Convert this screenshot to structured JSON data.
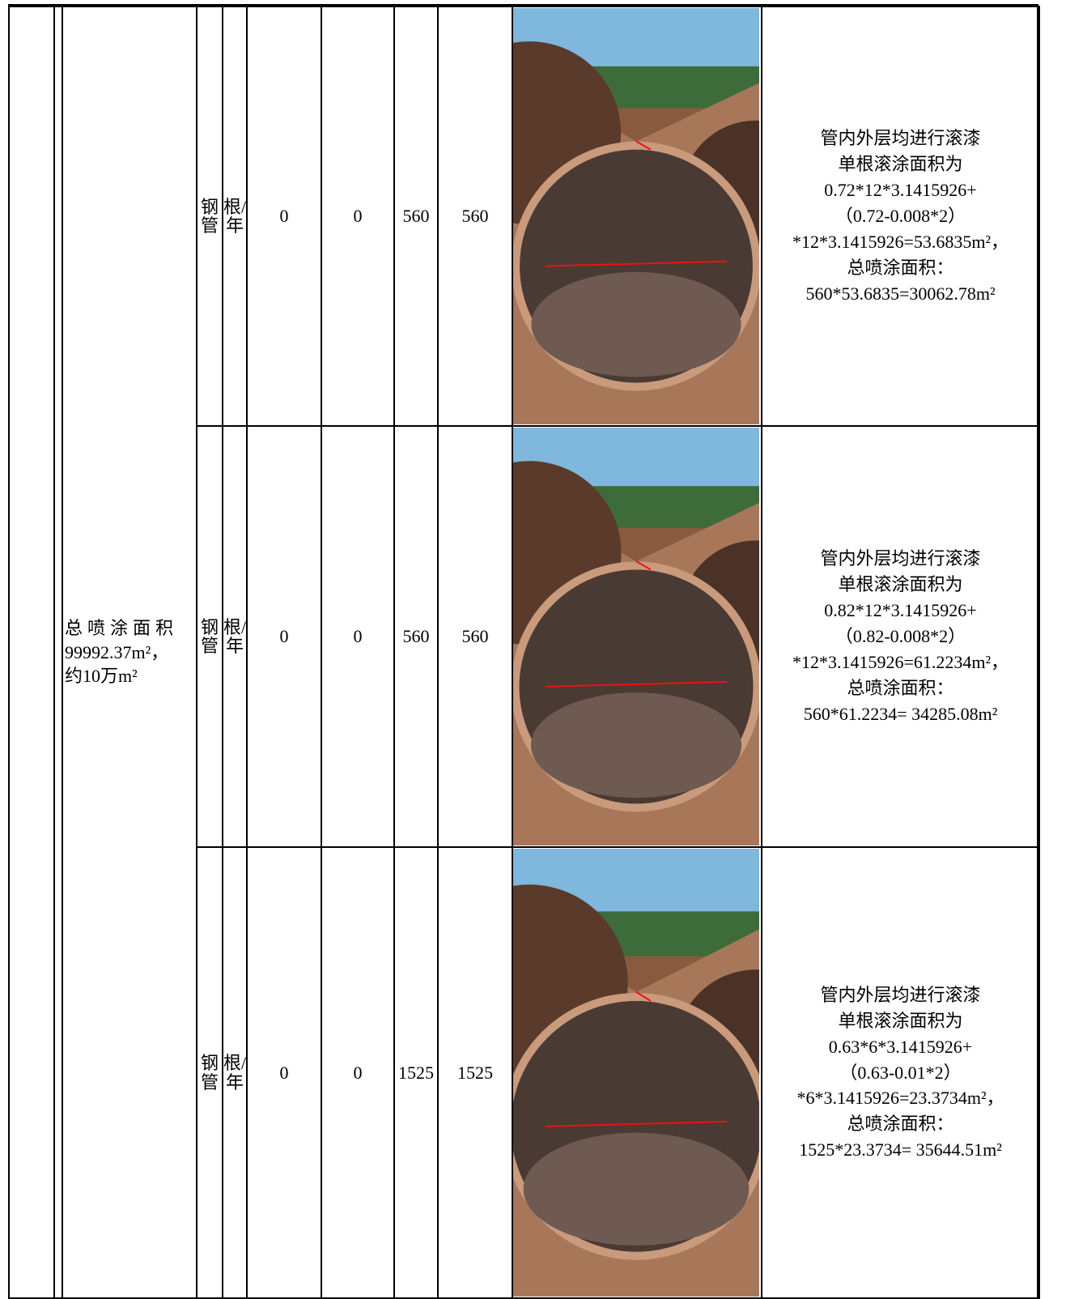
{
  "table": {
    "merged_cell": [
      "总喷涂面积",
      "99992.37m²，",
      "约10万m²"
    ],
    "rows": [
      {
        "material": "钢管",
        "unit": "根/年",
        "values": [
          0,
          0,
          560,
          560
        ],
        "description": [
          "管内外层均进行滚漆",
          "单根滚涂面积为",
          "0.72*12*3.1415926+",
          "（0.72-0.008*2）",
          "*12*3.1415926=53.6835m²，",
          "总喷涂面积：",
          "560*53.6835=30062.78m²"
        ]
      },
      {
        "material": "钢管",
        "unit": "根/年",
        "values": [
          0,
          0,
          560,
          560
        ],
        "description": [
          "管内外层均进行滚漆",
          "单根滚涂面积为",
          "0.82*12*3.1415926+",
          "（0.82-0.008*2）",
          "*12*3.1415926=61.2234m²，",
          "总喷涂面积：",
          "560*61.2234= 34285.08m²"
        ]
      },
      {
        "material": "钢管",
        "unit": "根/年",
        "values": [
          0,
          0,
          1525,
          1525
        ],
        "description": [
          "管内外层均进行滚漆",
          "单根滚涂面积为",
          "0.63*6*3.1415926+",
          "（0.63-0.01*2）",
          "*6*3.1415926=23.3734m²，",
          "总喷涂面积：",
          "1525*23.3734= 35644.51m²"
        ]
      }
    ]
  }
}
